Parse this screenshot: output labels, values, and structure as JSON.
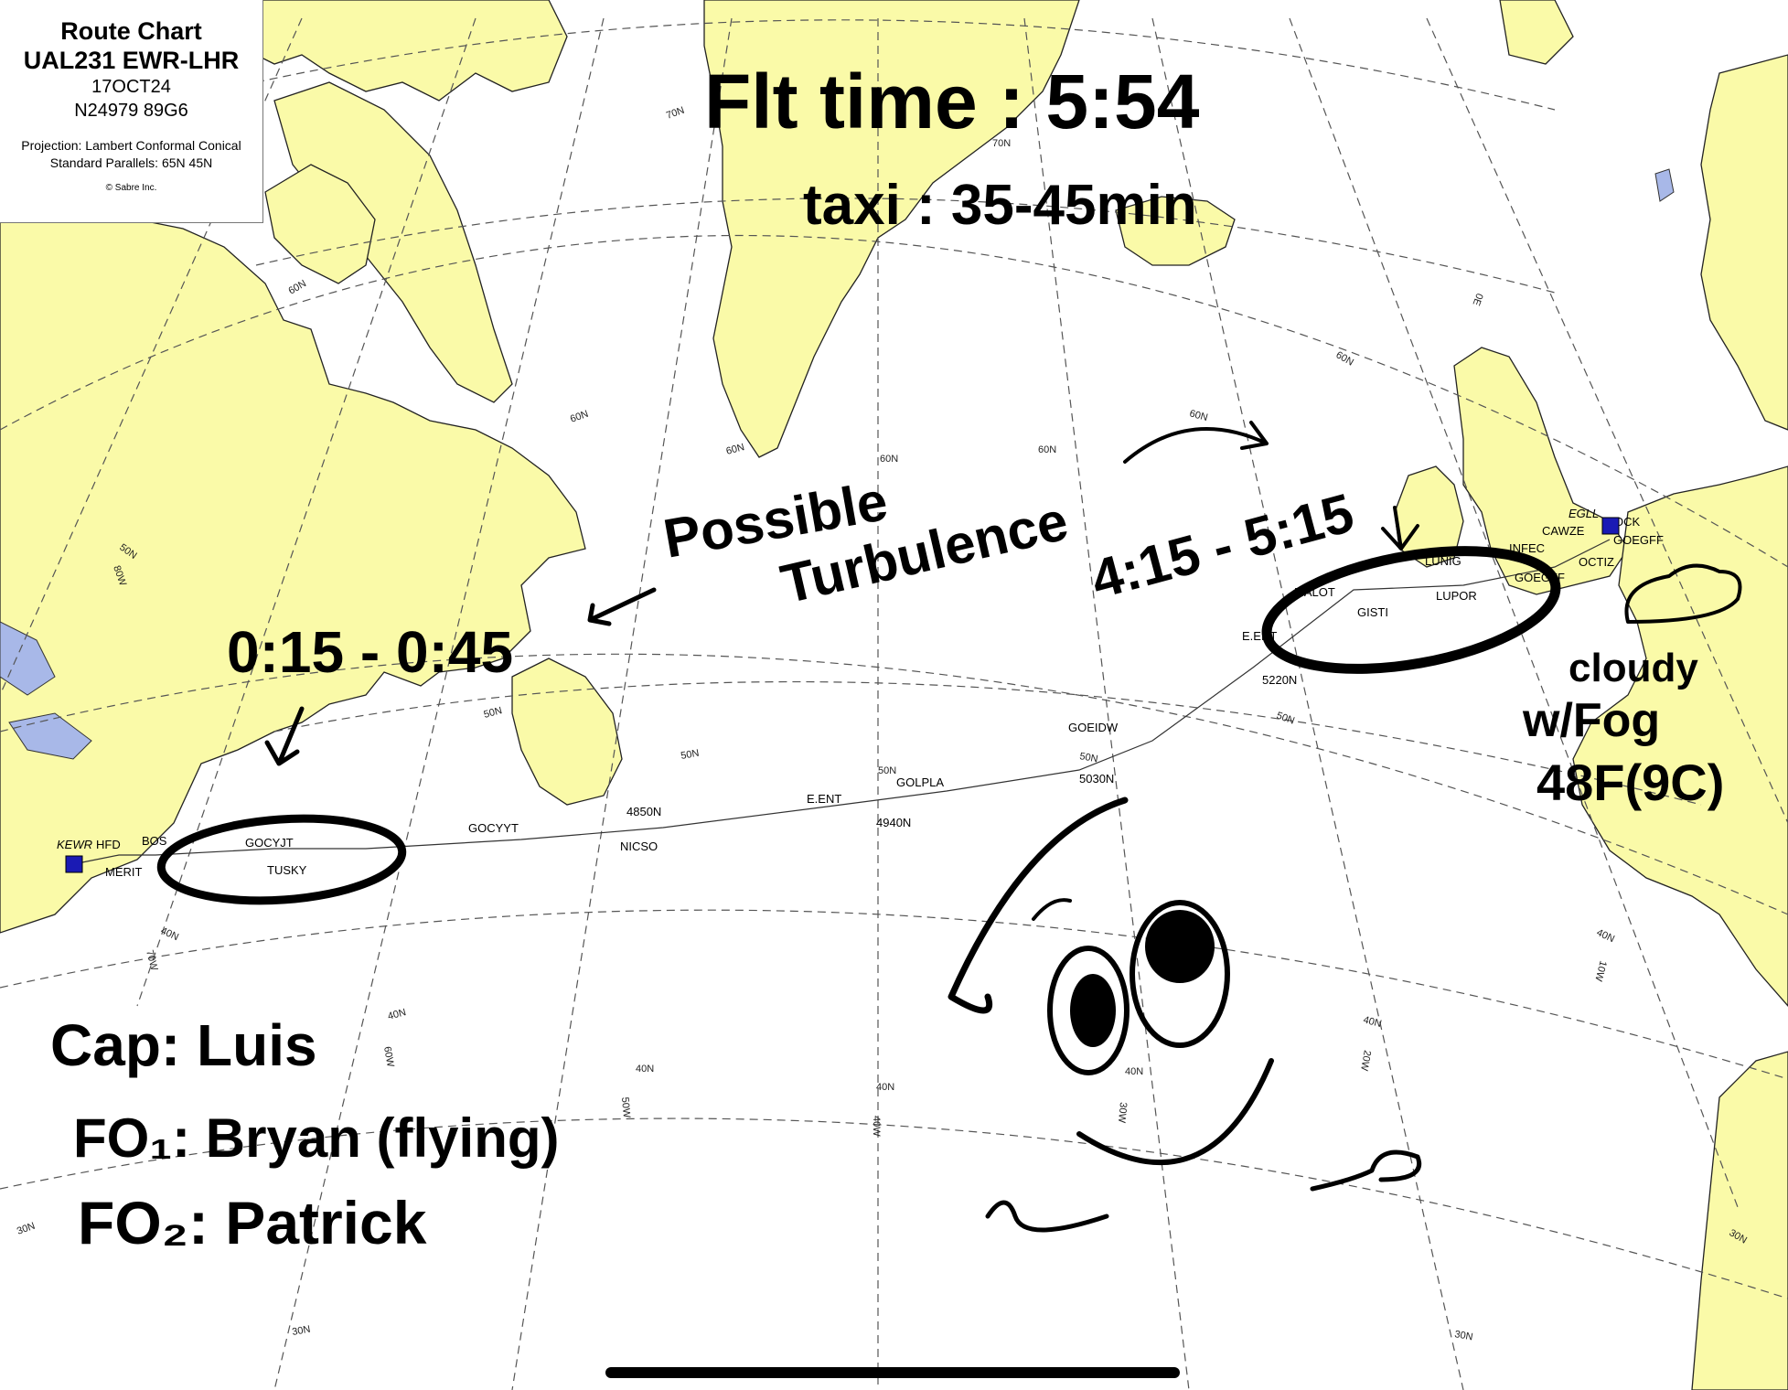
{
  "chart_header": {
    "title": "Route Chart",
    "flight": "UAL231 EWR-LHR",
    "date": "17OCT24",
    "registration": "N24979 89G6",
    "projection": "Projection: Lambert Conformal Conical",
    "parallels": "Standard Parallels: 65N 45N",
    "copyright": "© Sabre Inc."
  },
  "colors": {
    "land": "#fafaa8",
    "water": "#ffffff",
    "coast": "#222222",
    "grid": "#555555",
    "route": "#333333",
    "ink": "#000000",
    "lake": "#a8b8e8",
    "airport": "#1a1ab4"
  },
  "airports": {
    "origin": "KEWR",
    "destination": "EGLL"
  },
  "waypoints": {
    "hfd": "HFD",
    "bos": "BOS",
    "merit": "MERIT",
    "gocyjt": "GOCYJT",
    "tusky": "TUSKY",
    "gocyyt": "GOCYYT",
    "n4850": "4850N",
    "nicso": "NICSO",
    "eent1": "E.ENT",
    "golpla": "GOLPLA",
    "n4940": "4940N",
    "goeidw": "GOEIDW",
    "n5030": "5030N",
    "eent2": "E.ENT",
    "n5220": "5220N",
    "malot": "MALOT",
    "gisti": "GISTI",
    "lunig": "LUNIG",
    "lupor": "LUPOR",
    "infec": "INFEC",
    "goegff1": "GOEGFF",
    "octiz": "OCTIZ",
    "cawze": "CAWZE",
    "goegff2": "GOEGFF",
    "ock": "OCK"
  },
  "grid_labels": {
    "n70": "70N",
    "n60": "60N",
    "n50": "50N",
    "n40": "40N",
    "n30": "30N",
    "w80": "80W",
    "w70": "70W",
    "w60": "60W",
    "w50": "50W",
    "w40": "40W",
    "w30": "30W",
    "w20": "20W",
    "w10": "10W",
    "e0": "0E"
  },
  "notes": {
    "flt_time": "Flt time : 5:54",
    "taxi": "taxi : 35-45min",
    "possible": "Possible",
    "turbulence": "Turbulence",
    "window1": "0:15 - 0:45",
    "window2": "4:15 - 5:15",
    "weather1": "cloudy",
    "weather2": "w/Fog",
    "weather3": "48F(9C)",
    "crew1": "Cap: Luis",
    "crew2": "FO₁: Bryan (flying)",
    "crew3": "FO₂: Patrick"
  }
}
